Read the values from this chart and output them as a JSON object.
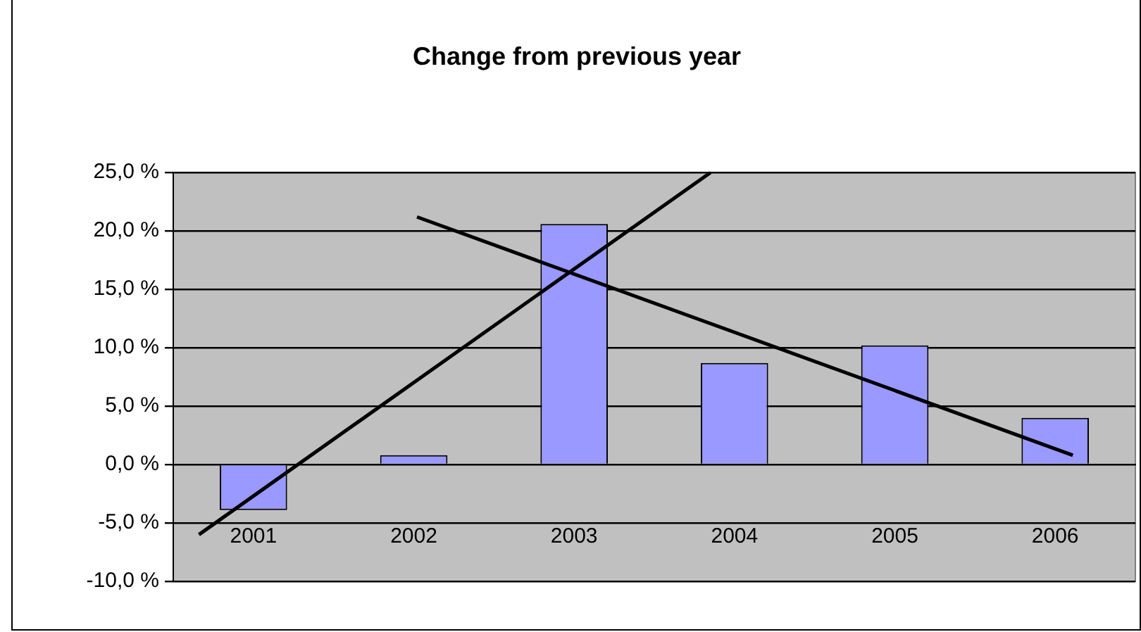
{
  "chart_data": {
    "type": "bar",
    "title": "Change from previous year",
    "x": [
      2001,
      2002,
      2003,
      2004,
      2005,
      2006
    ],
    "xlim": [
      2000.5,
      2006.5
    ],
    "xticks": [
      2001,
      2002,
      2003,
      2004,
      2005,
      2006
    ],
    "ylim": [
      -10,
      25
    ],
    "yticks": [
      {
        "value": -10,
        "label": "-10,0 %"
      },
      {
        "value": -5,
        "label": "-5,0 %"
      },
      {
        "value": 0,
        "label": "0,0 %"
      },
      {
        "value": 5,
        "label": "5,0 %"
      },
      {
        "value": 10,
        "label": "10,0 %"
      },
      {
        "value": 15,
        "label": "15,0 %"
      },
      {
        "value": 20,
        "label": "20,0 %"
      },
      {
        "value": 25,
        "label": "25,0 %"
      }
    ],
    "grid": "y",
    "legend": false,
    "series": [
      {
        "color": "#9999ff",
        "values": [
          -3.9,
          0.8,
          20.6,
          8.7,
          10.2,
          4.0
        ]
      },
      {
        "type": "line",
        "color": "#000000",
        "x": [
          2000.66,
          2003.85
        ],
        "values": [
          -6.0,
          25
        ]
      },
      {
        "type": "line",
        "color": "#000000",
        "x": [
          2002.02,
          2006.11
        ],
        "values": [
          21.2,
          0.8
        ]
      }
    ]
  }
}
